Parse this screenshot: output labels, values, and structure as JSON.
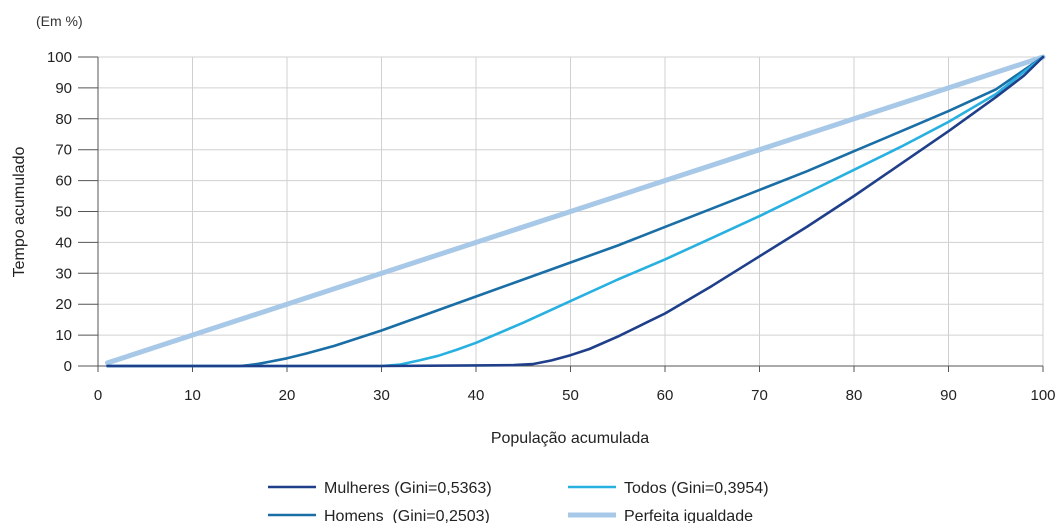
{
  "chart_data": {
    "type": "line",
    "unit_label": "(Em %)",
    "xlabel": "População acumulada",
    "ylabel": "Tempo acumulado",
    "xlim": [
      0,
      100
    ],
    "ylim": [
      0,
      100
    ],
    "x_ticks": [
      "0",
      "10",
      "20",
      "30",
      "40",
      "50",
      "60",
      "70",
      "80",
      "90",
      "100"
    ],
    "y_ticks": [
      "0",
      "10",
      "20",
      "30",
      "40",
      "50",
      "60",
      "70",
      "80",
      "90",
      "100"
    ],
    "grid": true,
    "legend_position": "bottom",
    "series": [
      {
        "name": "Mulheres (Gini=0,5363)",
        "color": "#1f3f8a",
        "x": [
          1,
          10,
          20,
          30,
          40,
          44,
          46,
          48,
          50,
          52,
          55,
          58,
          60,
          65,
          70,
          75,
          80,
          85,
          90,
          95,
          98,
          100
        ],
        "y": [
          0,
          0,
          0,
          0,
          0.2,
          0.3,
          0.6,
          1.8,
          3.5,
          5.5,
          9.5,
          14,
          17,
          26,
          35.5,
          45,
          55,
          65.5,
          76,
          87,
          94,
          100
        ]
      },
      {
        "name": "Todos (Gini=0,3954)",
        "color": "#28b0e0",
        "x": [
          1,
          10,
          20,
          30,
          32,
          34,
          36,
          38,
          40,
          45,
          50,
          55,
          60,
          65,
          70,
          75,
          80,
          85,
          90,
          95,
          100
        ],
        "y": [
          0,
          0,
          0,
          0,
          0.5,
          1.8,
          3.3,
          5.3,
          7.5,
          14,
          21,
          28,
          34.5,
          41.5,
          48.5,
          56,
          63.5,
          71,
          79,
          88,
          100
        ]
      },
      {
        "name": "Homens  (Gini=0,2503)",
        "color": "#1a6ea6",
        "x": [
          1,
          10,
          15,
          16,
          17,
          18,
          20,
          22,
          25,
          30,
          35,
          40,
          45,
          50,
          55,
          60,
          65,
          70,
          75,
          80,
          85,
          90,
          95,
          100
        ],
        "y": [
          0,
          0,
          0,
          0.3,
          0.7,
          1.3,
          2.5,
          4,
          6.5,
          11.5,
          17,
          22.5,
          28,
          33.5,
          39,
          45,
          51,
          57,
          63,
          69.5,
          76,
          82.5,
          89.5,
          100
        ]
      },
      {
        "name": "Perfeita igualdade",
        "color": "#a8c8e8",
        "x": [
          1,
          100
        ],
        "y": [
          1,
          100
        ]
      }
    ]
  }
}
